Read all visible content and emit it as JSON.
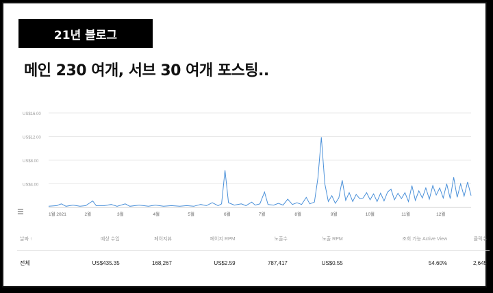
{
  "tag_label": "21년 블로그",
  "headline": "메인 230 여개, 서브 30 여개 포스팅..",
  "chart_data": {
    "type": "line",
    "y_ticks": [
      "US$16.00",
      "US$12.00",
      "US$8.00",
      "US$4.00"
    ],
    "ylim": [
      0,
      16
    ],
    "x_ticks": [
      "1월 2021",
      "2월",
      "3월",
      "4월",
      "5월",
      "6월",
      "7월",
      "8월",
      "9월",
      "10월",
      "11월",
      "12월"
    ],
    "x_start": "2021-01-01",
    "x_end": "2021-12-31",
    "series": [
      {
        "color": "#4a90d9",
        "points": [
          [
            "2021-01-01",
            0.2
          ],
          [
            "2021-01-08",
            0.3
          ],
          [
            "2021-01-12",
            0.6
          ],
          [
            "2021-01-16",
            0.2
          ],
          [
            "2021-01-22",
            0.4
          ],
          [
            "2021-01-28",
            0.2
          ],
          [
            "2021-02-02",
            0.3
          ],
          [
            "2021-02-08",
            1.1
          ],
          [
            "2021-02-11",
            0.3
          ],
          [
            "2021-02-18",
            0.3
          ],
          [
            "2021-02-24",
            0.5
          ],
          [
            "2021-03-01",
            0.2
          ],
          [
            "2021-03-08",
            0.6
          ],
          [
            "2021-03-12",
            0.2
          ],
          [
            "2021-03-20",
            0.4
          ],
          [
            "2021-03-28",
            0.2
          ],
          [
            "2021-04-03",
            0.4
          ],
          [
            "2021-04-10",
            0.2
          ],
          [
            "2021-04-17",
            0.3
          ],
          [
            "2021-04-24",
            0.2
          ],
          [
            "2021-04-30",
            0.3
          ],
          [
            "2021-05-06",
            0.2
          ],
          [
            "2021-05-12",
            0.5
          ],
          [
            "2021-05-17",
            0.3
          ],
          [
            "2021-05-22",
            0.8
          ],
          [
            "2021-05-27",
            0.3
          ],
          [
            "2021-05-30",
            0.6
          ],
          [
            "2021-06-02",
            6.3
          ],
          [
            "2021-06-05",
            0.8
          ],
          [
            "2021-06-10",
            0.4
          ],
          [
            "2021-06-16",
            0.6
          ],
          [
            "2021-06-20",
            0.3
          ],
          [
            "2021-06-25",
            0.9
          ],
          [
            "2021-06-28",
            0.4
          ],
          [
            "2021-07-02",
            0.6
          ],
          [
            "2021-07-06",
            2.6
          ],
          [
            "2021-07-09",
            0.5
          ],
          [
            "2021-07-14",
            0.4
          ],
          [
            "2021-07-18",
            0.7
          ],
          [
            "2021-07-22",
            0.4
          ],
          [
            "2021-07-26",
            1.4
          ],
          [
            "2021-07-30",
            0.5
          ],
          [
            "2021-08-03",
            0.8
          ],
          [
            "2021-08-07",
            0.5
          ],
          [
            "2021-08-11",
            1.7
          ],
          [
            "2021-08-14",
            0.6
          ],
          [
            "2021-08-18",
            0.9
          ],
          [
            "2021-08-21",
            5.0
          ],
          [
            "2021-08-24",
            11.9
          ],
          [
            "2021-08-27",
            4.0
          ],
          [
            "2021-08-30",
            1.0
          ],
          [
            "2021-09-02",
            2.0
          ],
          [
            "2021-09-05",
            0.7
          ],
          [
            "2021-09-08",
            1.6
          ],
          [
            "2021-09-11",
            4.6
          ],
          [
            "2021-09-14",
            1.2
          ],
          [
            "2021-09-17",
            2.5
          ],
          [
            "2021-09-20",
            1.0
          ],
          [
            "2021-09-23",
            2.2
          ],
          [
            "2021-09-26",
            1.5
          ],
          [
            "2021-09-29",
            1.6
          ],
          [
            "2021-10-02",
            2.5
          ],
          [
            "2021-10-05",
            1.3
          ],
          [
            "2021-10-08",
            2.3
          ],
          [
            "2021-10-11",
            1.0
          ],
          [
            "2021-10-14",
            2.4
          ],
          [
            "2021-10-17",
            1.1
          ],
          [
            "2021-10-20",
            2.6
          ],
          [
            "2021-10-23",
            3.1
          ],
          [
            "2021-10-26",
            1.3
          ],
          [
            "2021-10-29",
            2.4
          ],
          [
            "2021-11-01",
            1.5
          ],
          [
            "2021-11-04",
            2.5
          ],
          [
            "2021-11-07",
            1.0
          ],
          [
            "2021-11-10",
            3.7
          ],
          [
            "2021-11-13",
            1.2
          ],
          [
            "2021-11-16",
            2.8
          ],
          [
            "2021-11-19",
            1.6
          ],
          [
            "2021-11-22",
            3.3
          ],
          [
            "2021-11-25",
            1.4
          ],
          [
            "2021-11-28",
            3.7
          ],
          [
            "2021-12-01",
            2.1
          ],
          [
            "2021-12-04",
            3.3
          ],
          [
            "2021-12-07",
            1.6
          ],
          [
            "2021-12-10",
            4.0
          ],
          [
            "2021-12-13",
            1.5
          ],
          [
            "2021-12-16",
            5.1
          ],
          [
            "2021-12-19",
            1.7
          ],
          [
            "2021-12-22",
            4.0
          ],
          [
            "2021-12-25",
            1.9
          ],
          [
            "2021-12-28",
            4.3
          ],
          [
            "2021-12-31",
            2.0
          ]
        ]
      }
    ]
  },
  "table": {
    "headers": [
      "날짜 ↑",
      "예상 수입",
      "페이지뷰",
      "페이지 RPM",
      "노출수",
      "노출 RPM",
      "조회 가능 Active View",
      "클릭수"
    ],
    "row": [
      "전체",
      "US$435.35",
      "168,267",
      "US$2.59",
      "787,417",
      "US$0.55",
      "54.60%",
      "2,645"
    ]
  }
}
